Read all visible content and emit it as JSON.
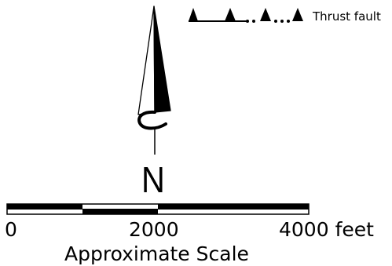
{
  "legend": {
    "thrust_fault_label": "Thrust fault",
    "line_color": "#000000"
  },
  "north_arrow": {
    "label": "N",
    "icon": "north-arrow-icon"
  },
  "scale_bar": {
    "ticks": [
      "0",
      "2000",
      "4000"
    ],
    "unit": "feet",
    "caption": "Approximate Scale",
    "colors": [
      "#000000",
      "#ffffff"
    ]
  }
}
